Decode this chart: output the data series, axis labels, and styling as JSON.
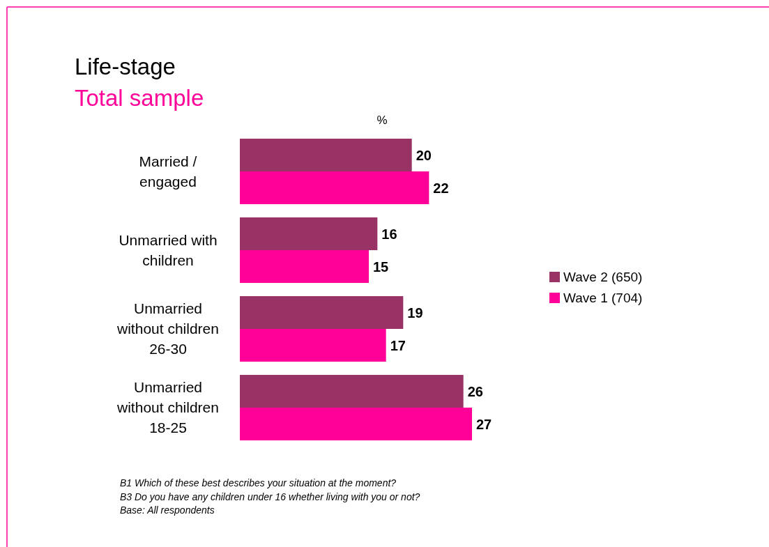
{
  "chart_data": {
    "type": "bar",
    "orientation": "horizontal",
    "title": "Life-stage",
    "subtitle": "Total sample",
    "xlabel": "%",
    "categories": [
      "Married / engaged",
      "Unmarried with children",
      "Unmarried without children 26-30",
      "Unmarried without children 18-25"
    ],
    "series": [
      {
        "name": "Wave 2 (650)",
        "color": "#993366",
        "values": [
          20,
          16,
          19,
          26
        ]
      },
      {
        "name": "Wave 1 (704)",
        "color": "#ff0099",
        "values": [
          22,
          15,
          17,
          27
        ]
      }
    ],
    "data_labels": true,
    "legend": "right",
    "annotations": [
      "B1 Which of these best describes your situation at the moment?",
      "B3 Do you have any children under 16 whether living with you or not?",
      "Base:  All respondents"
    ]
  }
}
